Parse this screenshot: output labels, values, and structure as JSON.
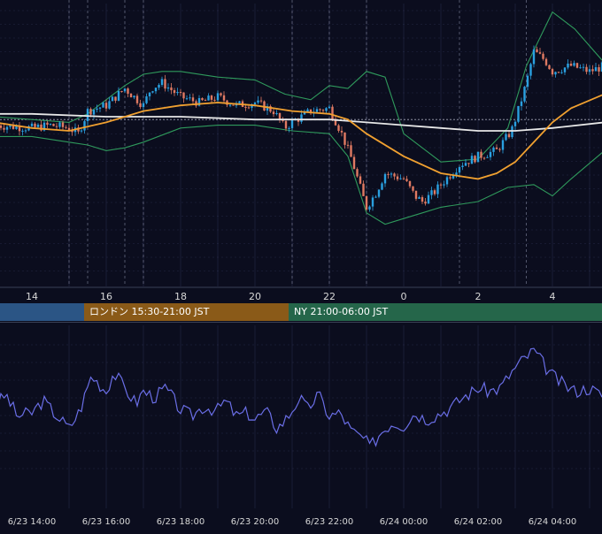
{
  "colors": {
    "background": "#0b0d1e",
    "grid": "#3b3f66",
    "candle_up": "#2aa0e0",
    "candle_down": "#e07a62",
    "ma_short": "#f0a030",
    "ma_long": "#e8e8e8",
    "bollinger": "#2f9a5c",
    "oscillator": "#6a6ee6",
    "session_tokyo": "#2b5585",
    "session_london": "#8a5a18",
    "session_ny": "#25664a",
    "axis_text": "#d8d8d8"
  },
  "sessions": [
    {
      "label": "",
      "color": "#2b5585"
    },
    {
      "label": "ロンドン 15:30-21:00 JST",
      "color": "#8a5a18"
    },
    {
      "label": "NY 21:00-06:00 JST",
      "color": "#25664a"
    }
  ],
  "chart_data": {
    "type": "candlestick",
    "price_panel": {
      "x_tick_labels": [
        "14",
        "16",
        "18",
        "20",
        "22",
        "0",
        "2",
        "4"
      ],
      "x_range_hours": [
        13.0,
        29.4
      ],
      "y_range": [
        0,
        100
      ],
      "grid": true,
      "candle_interval_minutes": 5,
      "bars_per_hour": 12,
      "close_points": [
        {
          "h": 13.0,
          "v": 57
        },
        {
          "h": 14.0,
          "v": 56
        },
        {
          "h": 14.5,
          "v": 57
        },
        {
          "h": 15.0,
          "v": 56
        },
        {
          "h": 15.25,
          "v": 54
        },
        {
          "h": 15.5,
          "v": 62
        },
        {
          "h": 16.0,
          "v": 64
        },
        {
          "h": 16.5,
          "v": 70
        },
        {
          "h": 17.0,
          "v": 64
        },
        {
          "h": 17.2,
          "v": 70
        },
        {
          "h": 17.5,
          "v": 72
        },
        {
          "h": 18.0,
          "v": 67
        },
        {
          "h": 18.5,
          "v": 65
        },
        {
          "h": 19.0,
          "v": 67
        },
        {
          "h": 19.5,
          "v": 64
        },
        {
          "h": 20.0,
          "v": 65
        },
        {
          "h": 20.5,
          "v": 62
        },
        {
          "h": 20.8,
          "v": 56
        },
        {
          "h": 21.0,
          "v": 58
        },
        {
          "h": 21.5,
          "v": 62
        },
        {
          "h": 22.0,
          "v": 63
        },
        {
          "h": 22.3,
          "v": 55
        },
        {
          "h": 22.6,
          "v": 45
        },
        {
          "h": 22.9,
          "v": 32
        },
        {
          "h": 23.0,
          "v": 28
        },
        {
          "h": 23.25,
          "v": 33
        },
        {
          "h": 23.5,
          "v": 40
        },
        {
          "h": 24.0,
          "v": 38
        },
        {
          "h": 24.3,
          "v": 32
        },
        {
          "h": 24.5,
          "v": 30
        },
        {
          "h": 24.8,
          "v": 33
        },
        {
          "h": 25.0,
          "v": 36
        },
        {
          "h": 25.5,
          "v": 43
        },
        {
          "h": 26.0,
          "v": 46
        },
        {
          "h": 26.5,
          "v": 48
        },
        {
          "h": 26.9,
          "v": 55
        },
        {
          "h": 27.1,
          "v": 63
        },
        {
          "h": 27.3,
          "v": 72
        },
        {
          "h": 27.5,
          "v": 83
        },
        {
          "h": 27.8,
          "v": 80
        },
        {
          "h": 28.0,
          "v": 76
        },
        {
          "h": 28.5,
          "v": 78
        },
        {
          "h": 29.0,
          "v": 76
        },
        {
          "h": 29.4,
          "v": 78
        }
      ],
      "moving_average_short": [
        {
          "h": 13.0,
          "v": 58
        },
        {
          "h": 14.0,
          "v": 56
        },
        {
          "h": 15.0,
          "v": 55
        },
        {
          "h": 16.0,
          "v": 58
        },
        {
          "h": 17.0,
          "v": 62
        },
        {
          "h": 18.0,
          "v": 64
        },
        {
          "h": 19.0,
          "v": 65
        },
        {
          "h": 20.0,
          "v": 64
        },
        {
          "h": 21.0,
          "v": 62
        },
        {
          "h": 22.0,
          "v": 61
        },
        {
          "h": 22.5,
          "v": 59
        },
        {
          "h": 23.0,
          "v": 54
        },
        {
          "h": 24.0,
          "v": 46
        },
        {
          "h": 25.0,
          "v": 40
        },
        {
          "h": 26.0,
          "v": 38
        },
        {
          "h": 26.5,
          "v": 40
        },
        {
          "h": 27.0,
          "v": 44
        },
        {
          "h": 27.5,
          "v": 51
        },
        {
          "h": 28.0,
          "v": 58
        },
        {
          "h": 28.5,
          "v": 63
        },
        {
          "h": 29.4,
          "v": 68
        }
      ],
      "moving_average_long": [
        {
          "h": 13.0,
          "v": 61
        },
        {
          "h": 14.0,
          "v": 61
        },
        {
          "h": 16.0,
          "v": 60
        },
        {
          "h": 18.0,
          "v": 60
        },
        {
          "h": 20.0,
          "v": 59
        },
        {
          "h": 22.0,
          "v": 59
        },
        {
          "h": 23.0,
          "v": 58
        },
        {
          "h": 24.0,
          "v": 57
        },
        {
          "h": 25.0,
          "v": 56
        },
        {
          "h": 26.0,
          "v": 55
        },
        {
          "h": 27.0,
          "v": 55
        },
        {
          "h": 28.0,
          "v": 56
        },
        {
          "h": 29.4,
          "v": 58
        }
      ],
      "bollinger_upper": [
        {
          "h": 13.0,
          "v": 60
        },
        {
          "h": 14.0,
          "v": 59
        },
        {
          "h": 15.0,
          "v": 58
        },
        {
          "h": 15.5,
          "v": 61
        },
        {
          "h": 16.0,
          "v": 66
        },
        {
          "h": 16.5,
          "v": 71
        },
        {
          "h": 17.0,
          "v": 75
        },
        {
          "h": 17.5,
          "v": 76
        },
        {
          "h": 18.0,
          "v": 76
        },
        {
          "h": 19.0,
          "v": 74
        },
        {
          "h": 20.0,
          "v": 73
        },
        {
          "h": 20.8,
          "v": 68
        },
        {
          "h": 21.5,
          "v": 66
        },
        {
          "h": 22.0,
          "v": 71
        },
        {
          "h": 22.5,
          "v": 70
        },
        {
          "h": 23.0,
          "v": 76
        },
        {
          "h": 23.5,
          "v": 74
        },
        {
          "h": 24.0,
          "v": 54
        },
        {
          "h": 25.0,
          "v": 44
        },
        {
          "h": 26.0,
          "v": 45
        },
        {
          "h": 26.8,
          "v": 56
        },
        {
          "h": 27.3,
          "v": 78
        },
        {
          "h": 28.0,
          "v": 97
        },
        {
          "h": 28.6,
          "v": 91
        },
        {
          "h": 29.4,
          "v": 79
        }
      ],
      "bollinger_lower": [
        {
          "h": 13.0,
          "v": 53
        },
        {
          "h": 14.0,
          "v": 53
        },
        {
          "h": 15.0,
          "v": 51
        },
        {
          "h": 15.5,
          "v": 50
        },
        {
          "h": 16.0,
          "v": 48
        },
        {
          "h": 16.5,
          "v": 49
        },
        {
          "h": 17.0,
          "v": 51
        },
        {
          "h": 18.0,
          "v": 56
        },
        {
          "h": 19.0,
          "v": 57
        },
        {
          "h": 20.0,
          "v": 57
        },
        {
          "h": 21.0,
          "v": 55
        },
        {
          "h": 22.0,
          "v": 54
        },
        {
          "h": 22.5,
          "v": 46
        },
        {
          "h": 23.0,
          "v": 26
        },
        {
          "h": 23.5,
          "v": 22
        },
        {
          "h": 24.0,
          "v": 24
        },
        {
          "h": 24.5,
          "v": 26
        },
        {
          "h": 25.0,
          "v": 28
        },
        {
          "h": 26.0,
          "v": 30
        },
        {
          "h": 26.8,
          "v": 35
        },
        {
          "h": 27.5,
          "v": 36
        },
        {
          "h": 28.0,
          "v": 32
        },
        {
          "h": 28.5,
          "v": 38
        },
        {
          "h": 29.4,
          "v": 48
        }
      ],
      "reference_level": 59,
      "event_markers_hours": [
        15.0,
        15.5,
        16.5,
        17.0,
        21.0,
        22.0,
        23.0,
        25.5,
        27.3
      ]
    },
    "oscillator_panel": {
      "x_tick_labels": [
        "6/23 14:00",
        "6/23 16:00",
        "6/23 18:00",
        "6/23 20:00",
        "6/23 22:00",
        "6/24 00:00",
        "6/24 02:00",
        "6/24 04:00"
      ],
      "y_range": [
        0,
        100
      ],
      "grid": true,
      "points": [
        {
          "h": 13.0,
          "v": 50
        },
        {
          "h": 13.3,
          "v": 58
        },
        {
          "h": 13.6,
          "v": 44
        },
        {
          "h": 14.0,
          "v": 46
        },
        {
          "h": 14.3,
          "v": 54
        },
        {
          "h": 14.6,
          "v": 46
        },
        {
          "h": 15.0,
          "v": 36
        },
        {
          "h": 15.3,
          "v": 48
        },
        {
          "h": 15.6,
          "v": 70
        },
        {
          "h": 16.0,
          "v": 60
        },
        {
          "h": 16.2,
          "v": 72
        },
        {
          "h": 16.5,
          "v": 62
        },
        {
          "h": 16.8,
          "v": 52
        },
        {
          "h": 17.0,
          "v": 60
        },
        {
          "h": 17.3,
          "v": 56
        },
        {
          "h": 17.6,
          "v": 62
        },
        {
          "h": 18.0,
          "v": 48
        },
        {
          "h": 18.3,
          "v": 44
        },
        {
          "h": 18.6,
          "v": 50
        },
        {
          "h": 19.0,
          "v": 48
        },
        {
          "h": 19.2,
          "v": 54
        },
        {
          "h": 19.5,
          "v": 44
        },
        {
          "h": 19.8,
          "v": 46
        },
        {
          "h": 20.0,
          "v": 42
        },
        {
          "h": 20.3,
          "v": 47
        },
        {
          "h": 20.6,
          "v": 36
        },
        {
          "h": 20.9,
          "v": 44
        },
        {
          "h": 21.2,
          "v": 56
        },
        {
          "h": 21.4,
          "v": 48
        },
        {
          "h": 21.7,
          "v": 58
        },
        {
          "h": 22.0,
          "v": 44
        },
        {
          "h": 22.3,
          "v": 46
        },
        {
          "h": 22.6,
          "v": 34
        },
        {
          "h": 22.9,
          "v": 30
        },
        {
          "h": 23.1,
          "v": 24
        },
        {
          "h": 23.4,
          "v": 34
        },
        {
          "h": 23.7,
          "v": 40
        },
        {
          "h": 24.0,
          "v": 38
        },
        {
          "h": 24.3,
          "v": 46
        },
        {
          "h": 24.6,
          "v": 42
        },
        {
          "h": 25.0,
          "v": 46
        },
        {
          "h": 25.3,
          "v": 50
        },
        {
          "h": 25.6,
          "v": 56
        },
        {
          "h": 26.0,
          "v": 62
        },
        {
          "h": 26.3,
          "v": 60
        },
        {
          "h": 26.6,
          "v": 62
        },
        {
          "h": 26.9,
          "v": 72
        },
        {
          "h": 27.2,
          "v": 80
        },
        {
          "h": 27.5,
          "v": 86
        },
        {
          "h": 27.8,
          "v": 76
        },
        {
          "h": 28.0,
          "v": 70
        },
        {
          "h": 28.3,
          "v": 64
        },
        {
          "h": 28.6,
          "v": 60
        },
        {
          "h": 29.0,
          "v": 62
        },
        {
          "h": 29.4,
          "v": 56
        }
      ]
    }
  }
}
